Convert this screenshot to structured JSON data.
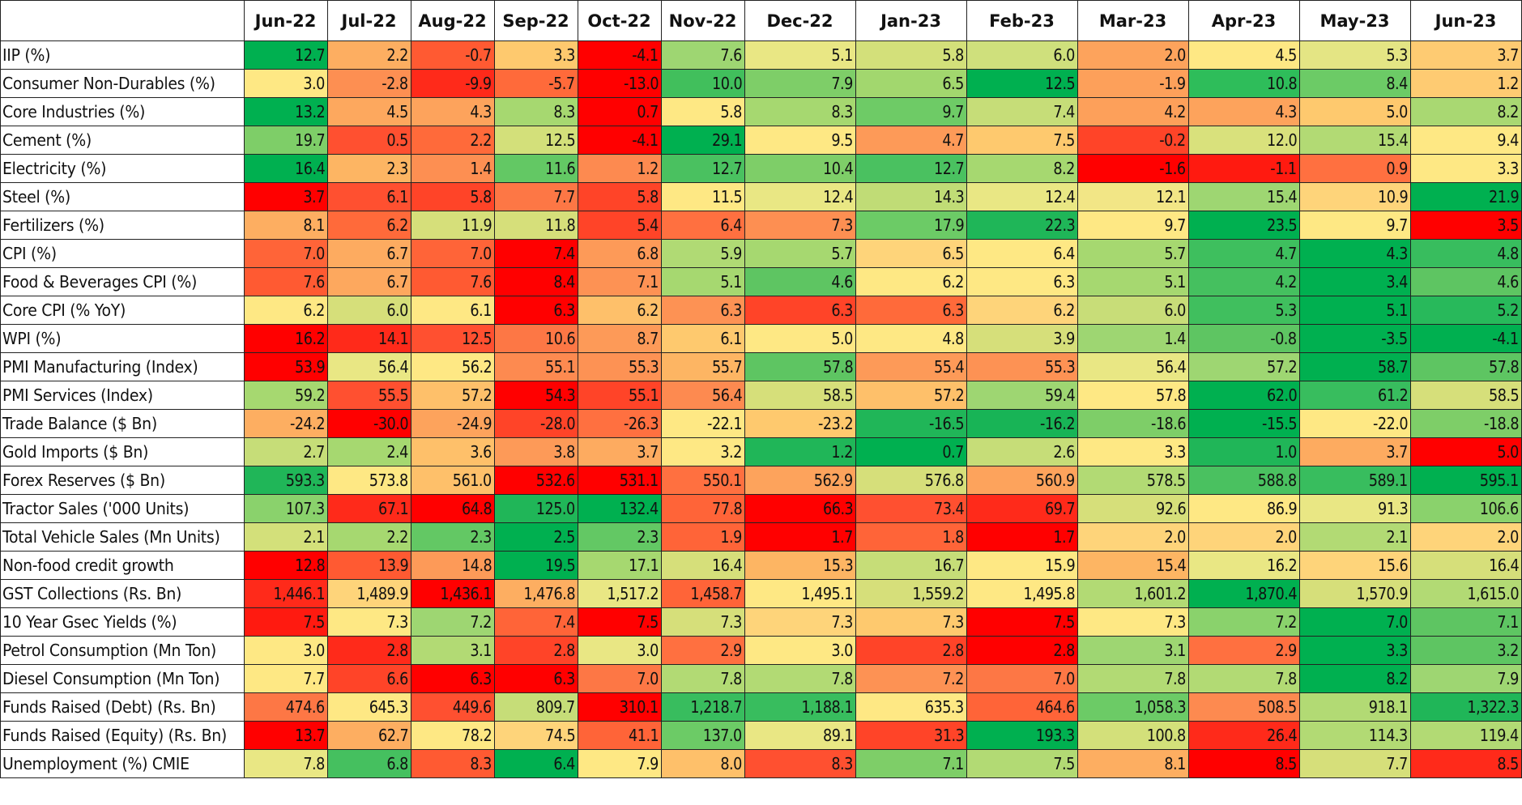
{
  "chart_data": {
    "type": "heatmap",
    "title": "",
    "xlabel": "",
    "ylabel": "",
    "columns": [
      "Jun-22",
      "Jul-22",
      "Aug-22",
      "Sep-22",
      "Oct-22",
      "Nov-22",
      "Dec-22",
      "Jan-23",
      "Feb-23",
      "Mar-23",
      "Apr-23",
      "May-23",
      "Jun-23"
    ],
    "rows": [
      {
        "label": "IIP (%)",
        "values": [
          "12.7",
          "2.2",
          "-0.7",
          "3.3",
          "-4.1",
          "7.6",
          "5.1",
          "5.8",
          "6.0",
          "2.0",
          "4.5",
          "5.3",
          "3.7"
        ],
        "colors": [
          "#00b050",
          "#fdae61",
          "#ff5a32",
          "#fec96e",
          "#ff0000",
          "#9ed672",
          "#e9e784",
          "#d3e07a",
          "#cfe07c",
          "#fda35c",
          "#fee884",
          "#e4e584",
          "#fecb72"
        ]
      },
      {
        "label": "Consumer Non-Durables (%)",
        "values": [
          "3.0",
          "-2.8",
          "-9.9",
          "-5.7",
          "-13.0",
          "10.0",
          "7.9",
          "6.5",
          "12.5",
          "-1.9",
          "10.8",
          "8.4",
          "1.2"
        ],
        "colors": [
          "#fee884",
          "#fd8f52",
          "#ff2a1a",
          "#ff6a3a",
          "#ff0000",
          "#41bf5c",
          "#7ece68",
          "#a2d76e",
          "#00b050",
          "#fda05a",
          "#2ebd5a",
          "#6ccb66",
          "#fecb72"
        ]
      },
      {
        "label": "Core Industries (%)",
        "values": [
          "13.2",
          "4.5",
          "4.3",
          "8.3",
          "0.7",
          "5.8",
          "8.3",
          "9.7",
          "7.4",
          "4.2",
          "4.3",
          "5.0",
          "8.2"
        ],
        "colors": [
          "#00b050",
          "#fda85e",
          "#fda35c",
          "#a6d870",
          "#ff0000",
          "#fee884",
          "#a6d870",
          "#6ecb66",
          "#c6dd78",
          "#fda05a",
          "#fda35c",
          "#fec96e",
          "#a9d872"
        ]
      },
      {
        "label": "Cement (%)",
        "values": [
          "19.7",
          "0.5",
          "2.2",
          "12.5",
          "-4.1",
          "29.1",
          "9.5",
          "4.7",
          "7.5",
          "-0.2",
          "12.0",
          "15.4",
          "9.4"
        ],
        "colors": [
          "#7ece68",
          "#ff5030",
          "#ff6a3a",
          "#d3e07a",
          "#ff0000",
          "#00b050",
          "#fee884",
          "#fd9a58",
          "#fec96e",
          "#ff4428",
          "#d9e17c",
          "#b2da74",
          "#fee884"
        ]
      },
      {
        "label": "Electricity (%)",
        "values": [
          "16.4",
          "2.3",
          "1.4",
          "11.6",
          "1.2",
          "12.7",
          "10.4",
          "12.7",
          "8.2",
          "-1.6",
          "-1.1",
          "0.9",
          "3.3"
        ],
        "colors": [
          "#00b050",
          "#fdb563",
          "#fd8f52",
          "#63c864",
          "#fd8a50",
          "#4ac160",
          "#7ece68",
          "#4ac160",
          "#a6d870",
          "#ff0000",
          "#ff1a10",
          "#ff7040",
          "#fee884"
        ]
      },
      {
        "label": "Steel (%)",
        "values": [
          "3.7",
          "6.1",
          "5.8",
          "7.7",
          "5.8",
          "11.5",
          "12.4",
          "14.3",
          "12.4",
          "12.1",
          "15.4",
          "10.9",
          "21.9"
        ],
        "colors": [
          "#ff0000",
          "#ff5030",
          "#ff4428",
          "#fd7745",
          "#ff4428",
          "#fee884",
          "#e9e784",
          "#c0dc76",
          "#e9e784",
          "#f2e686",
          "#9ed672",
          "#fed47a",
          "#00b050"
        ]
      },
      {
        "label": "Fertilizers (%)",
        "values": [
          "8.1",
          "6.2",
          "11.9",
          "11.8",
          "5.4",
          "6.4",
          "7.3",
          "17.9",
          "22.3",
          "9.7",
          "23.5",
          "9.7",
          "3.5"
        ],
        "colors": [
          "#fdae61",
          "#ff6a3a",
          "#d6df7a",
          "#d6df7a",
          "#ff4428",
          "#ff7040",
          "#fd8f52",
          "#6ccb66",
          "#1fb658",
          "#fee884",
          "#00b050",
          "#fee884",
          "#ff0000"
        ]
      },
      {
        "label": "CPI (%)",
        "values": [
          "7.0",
          "6.7",
          "7.0",
          "7.4",
          "6.8",
          "5.9",
          "5.7",
          "6.5",
          "6.4",
          "5.7",
          "4.7",
          "4.3",
          "4.8"
        ],
        "colors": [
          "#ff6438",
          "#fdab60",
          "#ff6438",
          "#ff0000",
          "#fd9a58",
          "#b0da74",
          "#a6d870",
          "#fed47a",
          "#fee884",
          "#a6d870",
          "#3ebf5e",
          "#00b050",
          "#38bd5e"
        ]
      },
      {
        "label": "Food & Beverages CPI (%)",
        "values": [
          "7.6",
          "6.7",
          "7.6",
          "8.4",
          "7.1",
          "5.1",
          "4.6",
          "6.2",
          "6.3",
          "5.1",
          "4.2",
          "3.4",
          "4.6"
        ],
        "colors": [
          "#ff5a32",
          "#fda85e",
          "#ff5a32",
          "#ff0000",
          "#fd9254",
          "#a6d870",
          "#5ec562",
          "#fee884",
          "#fee884",
          "#a6d870",
          "#45c05f",
          "#00b050",
          "#5ec562"
        ]
      },
      {
        "label": "Core CPI (% YoY)",
        "values": [
          "6.2",
          "6.0",
          "6.1",
          "6.3",
          "6.2",
          "6.3",
          "6.3",
          "6.3",
          "6.2",
          "6.0",
          "5.3",
          "5.1",
          "5.2"
        ],
        "colors": [
          "#fee884",
          "#d6df7a",
          "#fee884",
          "#ff0000",
          "#fec06a",
          "#fd9254",
          "#ff4428",
          "#ff6a3a",
          "#fed47a",
          "#c8dd78",
          "#40bf5e",
          "#00b050",
          "#28b95b"
        ]
      },
      {
        "label": "WPI (%)",
        "values": [
          "16.2",
          "14.1",
          "12.5",
          "10.6",
          "8.7",
          "6.1",
          "5.0",
          "4.8",
          "3.9",
          "1.4",
          "-0.8",
          "-3.5",
          "-4.1"
        ],
        "colors": [
          "#ff0000",
          "#ff2a1a",
          "#ff5030",
          "#fd7745",
          "#fd9a58",
          "#fec96e",
          "#fee884",
          "#fee884",
          "#d6df7a",
          "#9ed672",
          "#5ec562",
          "#00b050",
          "#00b050"
        ]
      },
      {
        "label": "PMI Manufacturing (Index)",
        "values": [
          "53.9",
          "56.4",
          "56.2",
          "55.1",
          "55.3",
          "55.7",
          "57.8",
          "55.4",
          "55.3",
          "56.4",
          "57.2",
          "58.7",
          "57.8"
        ],
        "colors": [
          "#ff0000",
          "#e9e784",
          "#fee884",
          "#fd8a50",
          "#fd9254",
          "#fdb563",
          "#5ec562",
          "#fd9a58",
          "#fd9254",
          "#e9e784",
          "#9ed672",
          "#00b050",
          "#5ec562"
        ]
      },
      {
        "label": "PMI Services (Index)",
        "values": [
          "59.2",
          "55.5",
          "57.2",
          "54.3",
          "55.1",
          "56.4",
          "58.5",
          "57.2",
          "59.4",
          "57.8",
          "62.0",
          "61.2",
          "58.5"
        ],
        "colors": [
          "#a6d870",
          "#ff5030",
          "#fec06a",
          "#ff0000",
          "#ff4428",
          "#fd8a50",
          "#d6df7a",
          "#fec06a",
          "#9ed672",
          "#fee884",
          "#00b050",
          "#38bd5e",
          "#d6df7a"
        ]
      },
      {
        "label": "Trade Balance ($ Bn)",
        "values": [
          "-24.2",
          "-30.0",
          "-24.9",
          "-28.0",
          "-26.3",
          "-22.1",
          "-23.2",
          "-16.5",
          "-16.2",
          "-18.6",
          "-15.5",
          "-22.0",
          "-18.8"
        ],
        "colors": [
          "#fdae61",
          "#ff0000",
          "#fda35c",
          "#ff4428",
          "#ff7040",
          "#fee884",
          "#fec96e",
          "#20b658",
          "#18b456",
          "#7ece68",
          "#00b050",
          "#fee884",
          "#7ece68"
        ]
      },
      {
        "label": "Gold Imports ($ Bn)",
        "values": [
          "2.7",
          "2.4",
          "3.6",
          "3.8",
          "3.7",
          "3.2",
          "1.2",
          "0.7",
          "2.6",
          "3.3",
          "1.0",
          "3.7",
          "5.0"
        ],
        "colors": [
          "#c6dd78",
          "#a6d870",
          "#fec06a",
          "#fd9a58",
          "#fdab60",
          "#fee884",
          "#20b658",
          "#00b050",
          "#c6dd78",
          "#fee884",
          "#20b658",
          "#fdab60",
          "#ff0000"
        ]
      },
      {
        "label": "Forex Reserves ($ Bn)",
        "values": [
          "593.3",
          "573.8",
          "561.0",
          "532.6",
          "531.1",
          "550.1",
          "562.9",
          "576.8",
          "560.9",
          "578.5",
          "588.8",
          "589.1",
          "595.1"
        ],
        "colors": [
          "#20b658",
          "#fee884",
          "#fec06a",
          "#ff0000",
          "#ff0000",
          "#ff7040",
          "#fda35c",
          "#d6df7a",
          "#fda35c",
          "#b2da74",
          "#4ac160",
          "#38bd5e",
          "#00b050"
        ]
      },
      {
        "label": "Tractor Sales ('000 Units)",
        "values": [
          "107.3",
          "67.1",
          "64.8",
          "125.0",
          "132.4",
          "77.8",
          "66.3",
          "73.4",
          "69.7",
          "92.6",
          "86.9",
          "91.3",
          "106.6"
        ],
        "colors": [
          "#8ad26c",
          "#ff2a1a",
          "#ff0000",
          "#20b658",
          "#00b050",
          "#ff6438",
          "#ff0000",
          "#ff5030",
          "#ff2a1a",
          "#d6df7a",
          "#fee884",
          "#e9e784",
          "#8ad26c"
        ]
      },
      {
        "label": "Total Vehicle Sales (Mn Units)",
        "values": [
          "2.1",
          "2.2",
          "2.3",
          "2.5",
          "2.3",
          "1.9",
          "1.7",
          "1.8",
          "1.7",
          "2.0",
          "2.0",
          "2.1",
          "2.0"
        ],
        "colors": [
          "#d3e07a",
          "#a6d870",
          "#63c864",
          "#00b050",
          "#63c864",
          "#ff6438",
          "#ff0000",
          "#ff6438",
          "#ff0000",
          "#fed47a",
          "#fed47a",
          "#b2da74",
          "#fed47a"
        ]
      },
      {
        "label": "Non-food credit growth",
        "values": [
          "12.8",
          "13.9",
          "14.8",
          "19.5",
          "17.1",
          "16.4",
          "15.3",
          "16.7",
          "15.9",
          "15.4",
          "16.2",
          "15.6",
          "16.4"
        ],
        "colors": [
          "#ff0000",
          "#ff5a32",
          "#fd9a58",
          "#00b050",
          "#a6d870",
          "#d6df7a",
          "#fdb563",
          "#c6dd78",
          "#fee884",
          "#fdb563",
          "#e9e784",
          "#fed47a",
          "#d6df7a"
        ]
      },
      {
        "label": "GST Collections (Rs. Bn)",
        "values": [
          "1,446.1",
          "1,489.9",
          "1,436.1",
          "1,476.8",
          "1,517.2",
          "1,458.7",
          "1,495.1",
          "1,559.2",
          "1,495.8",
          "1,601.2",
          "1,870.4",
          "1,570.9",
          "1,615.0"
        ],
        "colors": [
          "#ff2a1a",
          "#fed47a",
          "#ff0000",
          "#fdae61",
          "#e9e784",
          "#ff6438",
          "#fee884",
          "#d6df7a",
          "#fee884",
          "#b2da74",
          "#00b050",
          "#d6df7a",
          "#b2da74"
        ]
      },
      {
        "label": "10 Year Gsec Yields (%)",
        "values": [
          "7.5",
          "7.3",
          "7.2",
          "7.4",
          "7.5",
          "7.3",
          "7.3",
          "7.3",
          "7.5",
          "7.3",
          "7.2",
          "7.0",
          "7.1"
        ],
        "colors": [
          "#ff1a10",
          "#fee884",
          "#9ed672",
          "#ff6438",
          "#ff0000",
          "#d6df7a",
          "#fed47a",
          "#fec96e",
          "#ff0000",
          "#fee884",
          "#8ad26c",
          "#00b050",
          "#5ec562"
        ]
      },
      {
        "label": "Petrol Consumption (Mn Ton)",
        "values": [
          "3.0",
          "2.8",
          "3.1",
          "2.8",
          "3.0",
          "2.9",
          "3.0",
          "2.8",
          "2.8",
          "3.1",
          "2.9",
          "3.3",
          "3.2"
        ],
        "colors": [
          "#fee884",
          "#ff2a1a",
          "#b2da74",
          "#ff4428",
          "#e9e784",
          "#ff7040",
          "#fee884",
          "#ff4428",
          "#ff0000",
          "#9ed672",
          "#ff7040",
          "#00b050",
          "#5ec562"
        ]
      },
      {
        "label": "Diesel Consumption (Mn Ton)",
        "values": [
          "7.7",
          "6.6",
          "6.3",
          "6.3",
          "7.0",
          "7.8",
          "7.8",
          "7.2",
          "7.0",
          "7.8",
          "7.8",
          "8.2",
          "7.9"
        ],
        "colors": [
          "#fee884",
          "#ff4428",
          "#ff0000",
          "#ff0000",
          "#fd7745",
          "#b2da74",
          "#b2da74",
          "#fd9254",
          "#fd7745",
          "#b2da74",
          "#b2da74",
          "#00b050",
          "#9ed672"
        ]
      },
      {
        "label": "Funds Raised (Debt) (Rs. Bn)",
        "values": [
          "474.6",
          "645.3",
          "449.6",
          "809.7",
          "310.1",
          "1,218.7",
          "1,188.1",
          "635.3",
          "464.6",
          "1,058.3",
          "508.5",
          "918.1",
          "1,322.3"
        ],
        "colors": [
          "#fd7745",
          "#fee884",
          "#ff5030",
          "#c6dd78",
          "#ff0000",
          "#38bd5e",
          "#38bd5e",
          "#fee884",
          "#ff6438",
          "#6ccb66",
          "#fd8a50",
          "#b2da74",
          "#20b658"
        ]
      },
      {
        "label": "Funds Raised (Equity) (Rs. Bn)",
        "values": [
          "13.7",
          "62.7",
          "78.2",
          "74.5",
          "41.1",
          "137.0",
          "89.1",
          "31.3",
          "193.3",
          "100.8",
          "26.4",
          "114.3",
          "119.4"
        ],
        "colors": [
          "#ff0000",
          "#fdae61",
          "#fee884",
          "#fed47a",
          "#ff6438",
          "#6ccb66",
          "#e9e784",
          "#ff4428",
          "#00b050",
          "#d3e07a",
          "#ff2a1a",
          "#b2da74",
          "#b2da74"
        ]
      },
      {
        "label": "Unemployment (%) CMIE",
        "values": [
          "7.8",
          "6.8",
          "8.3",
          "6.4",
          "7.9",
          "8.0",
          "8.3",
          "7.1",
          "7.5",
          "8.1",
          "8.5",
          "7.7",
          "8.5"
        ],
        "colors": [
          "#e9e784",
          "#45c05f",
          "#ff5a32",
          "#00b050",
          "#fee884",
          "#fec06a",
          "#ff5030",
          "#7ece68",
          "#b2da74",
          "#fdae61",
          "#ff0000",
          "#d6df7a",
          "#ff2a1a"
        ]
      }
    ],
    "color_scale": {
      "low": "#ff0000",
      "mid": "#fee884",
      "high": "#00b050"
    }
  }
}
